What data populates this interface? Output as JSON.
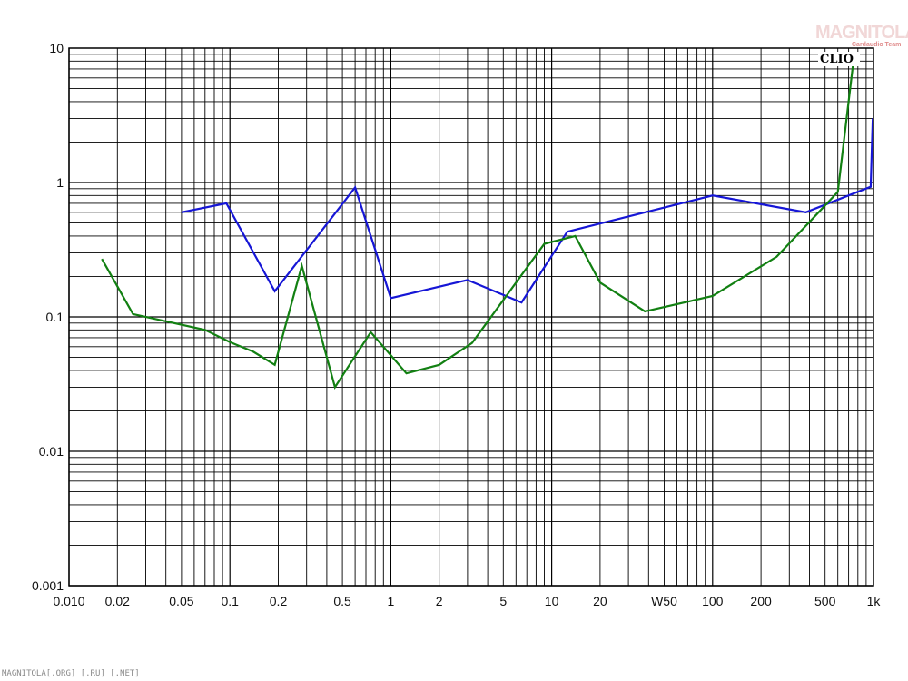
{
  "logo": {
    "main": "MAGNITOLA",
    "sub": "Cardaudio Team"
  },
  "brand": "CLIO",
  "footer": "MAGNITOLA[.ORG] [.RU] [.NET]",
  "colors": {
    "blue_series": "#1616d6",
    "green_series": "#128012",
    "grid": "#000000",
    "background": "#ffffff"
  },
  "chart_data": {
    "type": "line",
    "xscale": "log",
    "yscale": "log",
    "xlim": [
      0.01,
      1000
    ],
    "ylim": [
      0.001,
      10
    ],
    "grid": true,
    "x_tick_labels": [
      {
        "value": 0.01,
        "label": "0.010"
      },
      {
        "value": 0.02,
        "label": "0.02"
      },
      {
        "value": 0.05,
        "label": "0.05"
      },
      {
        "value": 0.1,
        "label": "0.1"
      },
      {
        "value": 0.2,
        "label": "0.2"
      },
      {
        "value": 0.5,
        "label": "0.5"
      },
      {
        "value": 1,
        "label": "1"
      },
      {
        "value": 2,
        "label": "2"
      },
      {
        "value": 5,
        "label": "5"
      },
      {
        "value": 10,
        "label": "10"
      },
      {
        "value": 20,
        "label": "20"
      },
      {
        "value": 50,
        "label": "W50"
      },
      {
        "value": 100,
        "label": "100"
      },
      {
        "value": 200,
        "label": "200"
      },
      {
        "value": 500,
        "label": "500"
      },
      {
        "value": 1000,
        "label": "1k"
      }
    ],
    "y_tick_labels": [
      {
        "value": 10,
        "label": "10"
      },
      {
        "value": 1,
        "label": "1"
      },
      {
        "value": 0.1,
        "label": "0.1"
      },
      {
        "value": 0.01,
        "label": "0.01"
      },
      {
        "value": 0.001,
        "label": "0.001"
      }
    ],
    "series": [
      {
        "color": "#1616d6",
        "x": [
          0.05,
          0.095,
          0.19,
          0.6,
          1.0,
          3.0,
          6.5,
          12.5,
          100,
          380,
          960,
          990
        ],
        "y": [
          0.6,
          0.7,
          0.155,
          0.92,
          0.138,
          0.188,
          0.128,
          0.43,
          0.8,
          0.6,
          0.93,
          3.0
        ]
      },
      {
        "color": "#128012",
        "x": [
          0.016,
          0.025,
          0.07,
          0.1,
          0.14,
          0.19,
          0.28,
          0.45,
          0.75,
          1.25,
          2.0,
          3.2,
          9.0,
          14,
          20,
          38,
          100,
          250,
          600,
          750
        ],
        "y": [
          0.27,
          0.105,
          0.08,
          0.065,
          0.055,
          0.044,
          0.24,
          0.03,
          0.077,
          0.038,
          0.044,
          0.064,
          0.35,
          0.4,
          0.18,
          0.11,
          0.143,
          0.28,
          0.85,
          8.0
        ]
      }
    ]
  }
}
